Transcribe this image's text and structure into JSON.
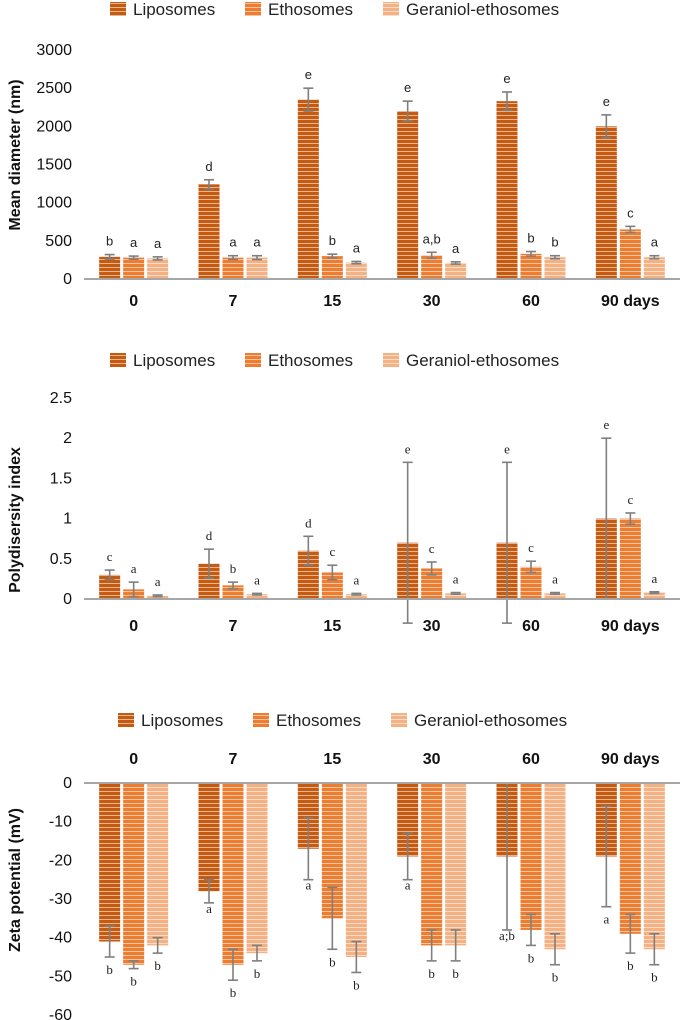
{
  "colors": {
    "liposomes": "#c55a11",
    "ethosomes": "#ed7d31",
    "geraniol": "#f4b183",
    "stripe": "#ffffff",
    "axis": "#a6a6a6",
    "error": "#7f7f7f"
  },
  "chart_data": [
    {
      "type": "bar",
      "id": "mean-diameter",
      "ylabel": "Mean diameter (nm)",
      "categories": [
        "0",
        "7",
        "15",
        "30",
        "60",
        "90 days"
      ],
      "ylim": [
        0,
        3000
      ],
      "yticks": [
        0,
        500,
        1000,
        1500,
        2000,
        2500,
        3000
      ],
      "ytick_labels": [
        "0",
        "500",
        "1000",
        "1500",
        "2000",
        "2500",
        "3000"
      ],
      "legend": [
        "Liposomes",
        "Ethosomes",
        "Geraniol-ethosomes"
      ],
      "series": [
        {
          "name": "Liposomes",
          "values": [
            290,
            1240,
            2350,
            2200,
            2330,
            2000
          ],
          "errors": [
            30,
            60,
            150,
            130,
            120,
            150
          ],
          "labels": [
            "b",
            "d",
            "e",
            "e",
            "e",
            "e"
          ]
        },
        {
          "name": "Ethosomes",
          "values": [
            280,
            280,
            300,
            310,
            330,
            650
          ],
          "errors": [
            20,
            25,
            25,
            40,
            30,
            40
          ],
          "labels": [
            "a",
            "a",
            "b",
            "a,b",
            "b",
            "c"
          ]
        },
        {
          "name": "Geraniol-ethosomes",
          "values": [
            270,
            280,
            215,
            210,
            285,
            285
          ],
          "errors": [
            20,
            25,
            15,
            15,
            20,
            20
          ],
          "labels": [
            "a",
            "a",
            "a",
            "a",
            "b",
            "a"
          ]
        }
      ]
    },
    {
      "type": "bar",
      "id": "pdi",
      "ylabel": "Polydisersity index",
      "categories": [
        "0",
        "7",
        "15",
        "30",
        "60",
        "90 days"
      ],
      "ylim": [
        0,
        2.5
      ],
      "yticks": [
        0,
        0.5,
        1,
        1.5,
        2,
        2.5
      ],
      "ytick_labels": [
        "0",
        "0.5",
        "1",
        "1.5",
        "2",
        "2.5"
      ],
      "legend": [
        "Liposomes",
        "Ethosomes",
        "Geraniol-ethosomes"
      ],
      "series": [
        {
          "name": "Liposomes",
          "values": [
            0.3,
            0.44,
            0.6,
            0.7,
            0.7,
            1.0
          ],
          "errors": [
            0.06,
            0.18,
            0.18,
            1.0,
            1.0,
            1.0
          ],
          "labels": [
            "c",
            "d",
            "d",
            "e",
            "e",
            "e"
          ]
        },
        {
          "name": "Ethosomes",
          "values": [
            0.12,
            0.17,
            0.33,
            0.38,
            0.4,
            1.0
          ],
          "errors": [
            0.09,
            0.04,
            0.09,
            0.08,
            0.07,
            0.07
          ],
          "labels": [
            "a",
            "b",
            "c",
            "c",
            "c",
            "c"
          ]
        },
        {
          "name": "Geraniol-ethosomes",
          "values": [
            0.04,
            0.06,
            0.06,
            0.07,
            0.07,
            0.08
          ],
          "errors": [
            0.01,
            0.01,
            0.01,
            0.01,
            0.01,
            0.01
          ],
          "labels": [
            "a",
            "a",
            "a",
            "a",
            "a",
            "a"
          ]
        }
      ]
    },
    {
      "type": "bar",
      "id": "zeta",
      "ylabel": "Zeta potential (mV)",
      "categories": [
        "0",
        "7",
        "15",
        "30",
        "60",
        "90 days"
      ],
      "ylim": [
        -60,
        0
      ],
      "yticks": [
        0,
        -10,
        -20,
        -30,
        -40,
        -50,
        -60
      ],
      "ytick_labels": [
        "0",
        "-10",
        "-20",
        "-30",
        "-40",
        "-50",
        "-60"
      ],
      "legend": [
        "Liposomes",
        "Ethosomes",
        "Geraniol-ethosomes"
      ],
      "series": [
        {
          "name": "Liposomes",
          "values": [
            -41,
            -28,
            -17,
            -19,
            -19,
            -19
          ],
          "errors": [
            4,
            3,
            8,
            6,
            19,
            13
          ],
          "labels": [
            "b",
            "a",
            "a",
            "a",
            "a;b",
            "a"
          ]
        },
        {
          "name": "Ethosomes",
          "values": [
            -47,
            -47,
            -35,
            -42,
            -38,
            -39
          ],
          "errors": [
            1,
            4,
            8,
            4,
            4,
            5
          ],
          "labels": [
            "b",
            "b",
            "b",
            "b",
            "b",
            "b"
          ]
        },
        {
          "name": "Geraniol-ethosomes",
          "values": [
            -42,
            -44,
            -45,
            -42,
            -43,
            -43
          ],
          "errors": [
            2,
            2,
            4,
            4,
            4,
            4
          ],
          "labels": [
            "b",
            "b",
            "b",
            "b",
            "b",
            "b"
          ]
        }
      ]
    }
  ]
}
